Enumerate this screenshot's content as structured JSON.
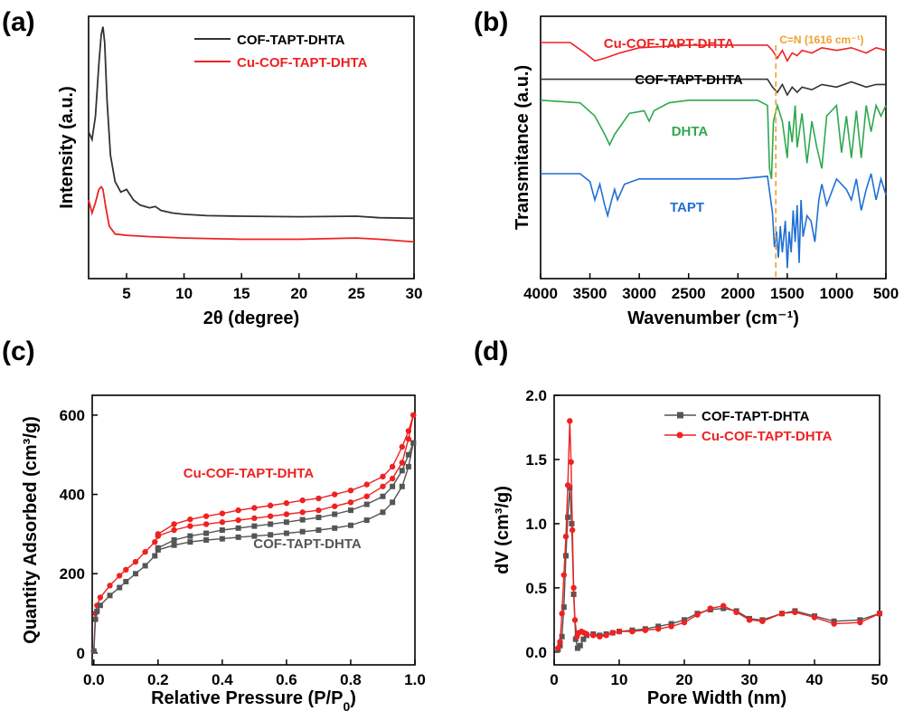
{
  "colors": {
    "black_series": "#333333",
    "red_series": "#ee2222",
    "green_series": "#2ea84f",
    "blue_series": "#1f6fd6",
    "gray_series": "#555555",
    "orange_marker": "#f0a030"
  },
  "chart_data": [
    {
      "panel": "(a)",
      "type": "line",
      "xlabel": "2θ (degree)",
      "ylabel": "Intensity (a.u.)",
      "xlim": [
        1.7,
        30
      ],
      "ylim": [
        0,
        1
      ],
      "xticks": [
        "5",
        "10",
        "15",
        "20",
        "25",
        "30"
      ],
      "yticks_shown": false,
      "legend_position": "top-right",
      "series": [
        {
          "name": "COF-TAPT-DHTA",
          "color": "#333333",
          "x": [
            1.7,
            2.0,
            2.3,
            2.6,
            2.8,
            2.95,
            3.1,
            3.3,
            3.6,
            4.0,
            4.5,
            5.0,
            5.6,
            6.2,
            7.0,
            7.5,
            8.0,
            9.0,
            10,
            12,
            15,
            20,
            25,
            27,
            30
          ],
          "y": [
            0.56,
            0.53,
            0.62,
            0.82,
            0.93,
            0.96,
            0.9,
            0.68,
            0.47,
            0.37,
            0.33,
            0.34,
            0.3,
            0.28,
            0.27,
            0.275,
            0.26,
            0.25,
            0.245,
            0.24,
            0.238,
            0.236,
            0.238,
            0.232,
            0.23
          ]
        },
        {
          "name": "Cu-COF-TAPT-DHTA",
          "color": "#ee2222",
          "x": [
            1.7,
            2.0,
            2.3,
            2.6,
            2.8,
            2.95,
            3.2,
            3.5,
            4.0,
            5,
            7,
            10,
            15,
            20,
            25,
            27,
            30
          ],
          "y": [
            0.3,
            0.25,
            0.29,
            0.34,
            0.35,
            0.34,
            0.27,
            0.2,
            0.17,
            0.165,
            0.16,
            0.155,
            0.15,
            0.15,
            0.155,
            0.15,
            0.14
          ]
        }
      ]
    },
    {
      "panel": "(b)",
      "type": "line",
      "xlabel": "Wavenumber (cm⁻¹)",
      "ylabel": "Transmitance (a.u.)",
      "xlim": [
        4000,
        500
      ],
      "x_reversed": true,
      "xticks": [
        "4000",
        "3500",
        "3000",
        "2500",
        "2000",
        "1500",
        "1000",
        "500"
      ],
      "yticks_shown": false,
      "annotation": "C=N (1616 cm⁻¹)",
      "annotation_x": 1616,
      "series": [
        {
          "name": "Cu-COF-TAPT-DHTA",
          "color": "#ee2222",
          "x": [
            4000,
            3700,
            3550,
            3450,
            3350,
            3200,
            3000,
            2500,
            2000,
            1700,
            1650,
            1600,
            1550,
            1500,
            1450,
            1400,
            1350,
            1250,
            1150,
            1000,
            850,
            700,
            600,
            500
          ],
          "y": [
            0.9,
            0.9,
            0.86,
            0.83,
            0.84,
            0.86,
            0.88,
            0.89,
            0.89,
            0.89,
            0.87,
            0.84,
            0.87,
            0.83,
            0.86,
            0.85,
            0.87,
            0.86,
            0.88,
            0.87,
            0.88,
            0.86,
            0.88,
            0.87
          ]
        },
        {
          "name": "COF-TAPT-DHTA",
          "color": "#333333",
          "x": [
            4000,
            3000,
            2500,
            2000,
            1700,
            1650,
            1600,
            1550,
            1500,
            1450,
            1400,
            1350,
            1250,
            1150,
            1000,
            850,
            700,
            600,
            500
          ],
          "y": [
            0.76,
            0.76,
            0.76,
            0.76,
            0.76,
            0.73,
            0.71,
            0.74,
            0.7,
            0.73,
            0.71,
            0.73,
            0.72,
            0.74,
            0.73,
            0.75,
            0.73,
            0.74,
            0.74
          ]
        },
        {
          "name": "DHTA",
          "color": "#2ea84f",
          "x": [
            4000,
            3600,
            3450,
            3350,
            3300,
            3250,
            3100,
            2950,
            2900,
            2850,
            2700,
            2500,
            2000,
            1800,
            1700,
            1680,
            1660,
            1640,
            1600,
            1550,
            1500,
            1480,
            1450,
            1420,
            1400,
            1350,
            1300,
            1250,
            1200,
            1150,
            1100,
            1000,
            950,
            900,
            850,
            800,
            750,
            700,
            650,
            600,
            550,
            500
          ],
          "y": [
            0.68,
            0.67,
            0.62,
            0.55,
            0.51,
            0.55,
            0.63,
            0.64,
            0.6,
            0.64,
            0.67,
            0.68,
            0.68,
            0.68,
            0.66,
            0.42,
            0.38,
            0.6,
            0.66,
            0.6,
            0.46,
            0.6,
            0.52,
            0.66,
            0.5,
            0.63,
            0.44,
            0.6,
            0.5,
            0.42,
            0.62,
            0.66,
            0.48,
            0.62,
            0.46,
            0.64,
            0.46,
            0.66,
            0.56,
            0.66,
            0.62,
            0.66
          ]
        },
        {
          "name": "TAPT",
          "color": "#1f6fd6",
          "x": [
            4000,
            3600,
            3500,
            3450,
            3400,
            3350,
            3320,
            3280,
            3250,
            3220,
            3150,
            3000,
            2500,
            2000,
            1700,
            1650,
            1630,
            1610,
            1590,
            1570,
            1550,
            1520,
            1500,
            1480,
            1460,
            1440,
            1420,
            1400,
            1380,
            1360,
            1340,
            1300,
            1260,
            1220,
            1180,
            1150,
            1100,
            1000,
            900,
            850,
            800,
            750,
            700,
            650,
            600,
            550,
            500
          ],
          "y": [
            0.4,
            0.4,
            0.37,
            0.3,
            0.36,
            0.28,
            0.24,
            0.3,
            0.34,
            0.3,
            0.36,
            0.38,
            0.38,
            0.38,
            0.39,
            0.25,
            0.12,
            0.18,
            0.08,
            0.2,
            0.1,
            0.22,
            0.04,
            0.18,
            0.1,
            0.26,
            0.14,
            0.28,
            0.06,
            0.3,
            0.16,
            0.24,
            0.22,
            0.14,
            0.3,
            0.36,
            0.28,
            0.38,
            0.34,
            0.3,
            0.38,
            0.26,
            0.34,
            0.4,
            0.3,
            0.38,
            0.32
          ]
        }
      ]
    },
    {
      "panel": "(c)",
      "type": "line",
      "xlabel": "Relative Pressure (P/P",
      "xlabel_sub": "0",
      "xlabel_end": ")",
      "ylabel": "Quantity Adsorbed (cm³/g)",
      "xlim": [
        0,
        1
      ],
      "ylim": [
        -30,
        650
      ],
      "xticks": [
        0,
        0.2,
        0.4,
        0.6,
        0.8,
        1.0
      ],
      "xtick_labels": [
        "0.0",
        "0.2",
        "0.4",
        "0.6",
        "0.8",
        "1.0"
      ],
      "yticks": [
        0,
        200,
        400,
        600
      ],
      "yticks_labels": [
        "0",
        "200",
        "400",
        "600"
      ],
      "annotations": [
        "Cu-COF-TAPT-DHTA",
        "COF-TAPT-DHTA"
      ],
      "series": [
        {
          "name": "Cu-COF-TAPT-DHTA",
          "color": "#ee2222",
          "marker": "circle",
          "adsorption": {
            "x": [
              0.0,
              0.005,
              0.01,
              0.02,
              0.05,
              0.08,
              0.1,
              0.13,
              0.16,
              0.19,
              0.2,
              0.25,
              0.3,
              0.35,
              0.4,
              0.45,
              0.5,
              0.55,
              0.6,
              0.65,
              0.7,
              0.75,
              0.8,
              0.85,
              0.9,
              0.93,
              0.96,
              0.98,
              0.995
            ],
            "y": [
              5,
              100,
              120,
              140,
              170,
              195,
              210,
              230,
              255,
              280,
              295,
              310,
              320,
              325,
              330,
              335,
              340,
              345,
              350,
              355,
              360,
              370,
              380,
              395,
              420,
              440,
              480,
              540,
              600
            ]
          },
          "desorption": {
            "x": [
              0.995,
              0.98,
              0.96,
              0.93,
              0.9,
              0.85,
              0.8,
              0.75,
              0.7,
              0.65,
              0.6,
              0.55,
              0.5,
              0.45,
              0.4,
              0.35,
              0.3,
              0.25,
              0.2
            ],
            "y": [
              600,
              560,
              520,
              470,
              445,
              425,
              410,
              400,
              390,
              385,
              378,
              372,
              366,
              360,
              352,
              345,
              337,
              325,
              300
            ]
          }
        },
        {
          "name": "COF-TAPT-DHTA",
          "color": "#555555",
          "marker": "square",
          "adsorption": {
            "x": [
              0.0,
              0.005,
              0.01,
              0.02,
              0.05,
              0.08,
              0.1,
              0.13,
              0.16,
              0.19,
              0.2,
              0.25,
              0.3,
              0.35,
              0.4,
              0.45,
              0.5,
              0.55,
              0.6,
              0.65,
              0.7,
              0.75,
              0.8,
              0.85,
              0.9,
              0.93,
              0.96,
              0.98,
              0.995
            ],
            "y": [
              5,
              85,
              105,
              120,
              145,
              165,
              180,
              200,
              220,
              245,
              260,
              272,
              280,
              285,
              288,
              292,
              295,
              298,
              302,
              306,
              310,
              315,
              322,
              335,
              355,
              380,
              420,
              470,
              530
            ]
          },
          "desorption": {
            "x": [
              0.995,
              0.98,
              0.96,
              0.93,
              0.9,
              0.85,
              0.8,
              0.75,
              0.7,
              0.65,
              0.6,
              0.55,
              0.5,
              0.45,
              0.4,
              0.35,
              0.3,
              0.25,
              0.2
            ],
            "y": [
              530,
              500,
              460,
              420,
              395,
              375,
              360,
              350,
              342,
              336,
              330,
              325,
              320,
              315,
              310,
              302,
              295,
              285,
              265
            ]
          }
        }
      ]
    },
    {
      "panel": "(d)",
      "type": "line",
      "xlabel": "Pore Width (nm)",
      "ylabel": "dV (cm³/g)",
      "xlim": [
        0,
        50
      ],
      "ylim": [
        -0.1,
        2.0
      ],
      "xticks": [
        0,
        10,
        20,
        30,
        40,
        50
      ],
      "xtick_labels": [
        "0",
        "10",
        "20",
        "30",
        "40",
        "50"
      ],
      "yticks": [
        0.0,
        0.5,
        1.0,
        1.5,
        2.0
      ],
      "yticks_labels": [
        "0.0",
        "0.5",
        "1.0",
        "1.5",
        "2.0"
      ],
      "legend_position": "top-right",
      "series": [
        {
          "name": "COF-TAPT-DHTA",
          "color": "#555555",
          "marker": "square",
          "x": [
            0.6,
            0.9,
            1.2,
            1.5,
            1.8,
            2.1,
            2.4,
            2.7,
            3.0,
            3.3,
            3.6,
            4.0,
            4.5,
            5,
            6,
            7,
            8,
            9,
            10,
            12,
            14,
            16,
            18,
            20,
            22,
            24,
            26,
            28,
            30,
            32,
            35,
            37,
            40,
            43,
            47,
            50
          ],
          "y": [
            0.02,
            0.05,
            0.12,
            0.35,
            0.75,
            1.05,
            1.28,
            1.0,
            0.45,
            0.1,
            0.03,
            0.05,
            0.1,
            0.13,
            0.14,
            0.13,
            0.14,
            0.15,
            0.16,
            0.17,
            0.18,
            0.2,
            0.22,
            0.25,
            0.3,
            0.33,
            0.34,
            0.32,
            0.26,
            0.25,
            0.3,
            0.32,
            0.28,
            0.24,
            0.25,
            0.3
          ]
        },
        {
          "name": "Cu-COF-TAPT-DHTA",
          "color": "#ee2222",
          "marker": "circle",
          "x": [
            0.6,
            0.9,
            1.2,
            1.5,
            1.8,
            2.1,
            2.4,
            2.6,
            2.8,
            3.0,
            3.2,
            3.5,
            3.8,
            4.2,
            4.6,
            5,
            6,
            7,
            8,
            9,
            10,
            12,
            14,
            16,
            18,
            20,
            22,
            24,
            26,
            28,
            30,
            32,
            35,
            37,
            40,
            43,
            47,
            50
          ],
          "y": [
            0.03,
            0.08,
            0.3,
            0.6,
            0.9,
            1.3,
            1.8,
            1.48,
            0.95,
            0.5,
            0.25,
            0.12,
            0.15,
            0.16,
            0.15,
            0.14,
            0.13,
            0.12,
            0.13,
            0.15,
            0.16,
            0.16,
            0.17,
            0.18,
            0.2,
            0.23,
            0.29,
            0.34,
            0.36,
            0.31,
            0.25,
            0.24,
            0.3,
            0.31,
            0.27,
            0.22,
            0.23,
            0.3
          ]
        }
      ]
    }
  ],
  "panels": {
    "a": {
      "label": "(a)"
    },
    "b": {
      "label": "(b)"
    },
    "c": {
      "label": "(c)"
    },
    "d": {
      "label": "(d)"
    }
  }
}
